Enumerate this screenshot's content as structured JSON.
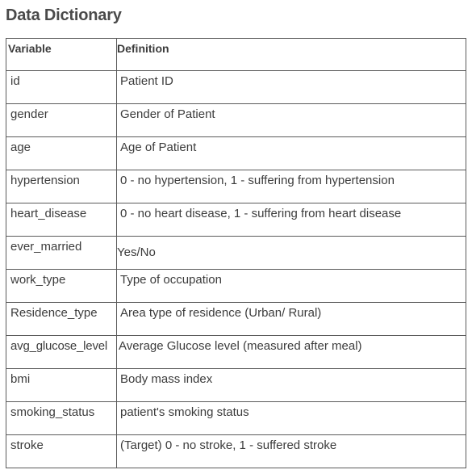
{
  "title": "Data Dictionary",
  "table": {
    "headers": {
      "variable": "Variable",
      "definition": "Definition"
    },
    "rows": [
      {
        "variable": "id",
        "definition": "Patient ID"
      },
      {
        "variable": "gender",
        "definition": "Gender of Patient"
      },
      {
        "variable": "age",
        "definition": "Age of Patient"
      },
      {
        "variable": "hypertension",
        "definition": "0 - no hypertension, 1 - suffering from hypertension"
      },
      {
        "variable": "heart_disease",
        "definition": "0 - no heart disease, 1 - suffering from heart disease"
      },
      {
        "variable": "ever_married",
        "definition": "Yes/No"
      },
      {
        "variable": "work_type",
        "definition": "Type of occupation"
      },
      {
        "variable": "Residence_type",
        "definition": "Area type of residence (Urban/ Rural)"
      },
      {
        "variable": "avg_glucose_level",
        "definition": "Average Glucose level (measured after meal)"
      },
      {
        "variable": "bmi",
        "definition": "Body mass index"
      },
      {
        "variable": "smoking_status",
        "definition": "patient's smoking status"
      },
      {
        "variable": "stroke",
        "definition": "(Target) 0 - no stroke, 1 - suffered stroke"
      }
    ]
  }
}
